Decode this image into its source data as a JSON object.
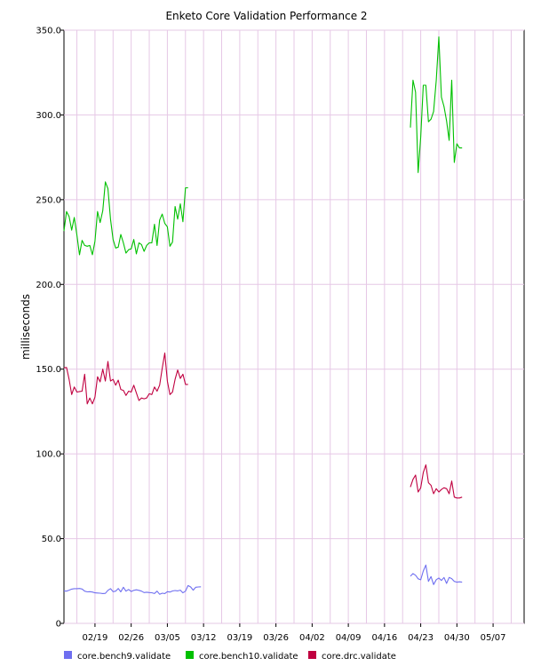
{
  "chart_data": {
    "type": "line",
    "title": "Enketo Core Validation Performance 2",
    "ylabel": "milliseconds",
    "xlabel": "",
    "ylim": [
      0,
      350
    ],
    "yticks": [
      "0",
      "50.0",
      "100.0",
      "150.0",
      "200.0",
      "250.0",
      "300.0",
      "350.0"
    ],
    "xlim": [
      "2019-02-13",
      "2019-05-13"
    ],
    "xticks": [
      {
        "date": "2019-02-19",
        "label": "02/19"
      },
      {
        "date": "2019-02-26",
        "label": "02/26"
      },
      {
        "date": "2019-03-05",
        "label": "03/05"
      },
      {
        "date": "2019-03-12",
        "label": "03/12"
      },
      {
        "date": "2019-03-19",
        "label": "03/19"
      },
      {
        "date": "2019-03-26",
        "label": "03/26"
      },
      {
        "date": "2019-04-02",
        "label": "04/02"
      },
      {
        "date": "2019-04-09",
        "label": "04/09"
      },
      {
        "date": "2019-04-16",
        "label": "04/16"
      },
      {
        "date": "2019-04-23",
        "label": "04/23"
      },
      {
        "date": "2019-04-30",
        "label": "04/30"
      },
      {
        "date": "2019-05-07",
        "label": "05/07"
      }
    ],
    "grid": true,
    "legend_position": "bottom",
    "series": [
      {
        "name": "core.bench9.validate",
        "color": "#6f6ff0",
        "segments": [
          [
            [
              "2019-02-13",
              19.2
            ],
            [
              "2019-02-13T12",
              19.0
            ],
            [
              "2019-02-14",
              19.6
            ],
            [
              "2019-02-14T12",
              20.2
            ],
            [
              "2019-02-15",
              20.5
            ],
            [
              "2019-02-15T12",
              20.5
            ],
            [
              "2019-02-16",
              20.6
            ],
            [
              "2019-02-16T12",
              20.3
            ],
            [
              "2019-02-17",
              19.0
            ],
            [
              "2019-02-17T12",
              18.6
            ],
            [
              "2019-02-18",
              18.7
            ],
            [
              "2019-02-18T12",
              18.5
            ],
            [
              "2019-02-19",
              18.0
            ],
            [
              "2019-02-19T12",
              17.9
            ],
            [
              "2019-02-20",
              17.8
            ],
            [
              "2019-02-20T12",
              17.6
            ],
            [
              "2019-02-21",
              17.7
            ],
            [
              "2019-02-21T12",
              19.5
            ],
            [
              "2019-02-22",
              20.5
            ],
            [
              "2019-02-22T12",
              18.7
            ],
            [
              "2019-02-23",
              19.0
            ],
            [
              "2019-02-23T12",
              20.6
            ],
            [
              "2019-02-24",
              18.6
            ],
            [
              "2019-02-24T12",
              21.3
            ],
            [
              "2019-02-25",
              19.0
            ],
            [
              "2019-02-25T12",
              20.0
            ],
            [
              "2019-02-26",
              18.8
            ],
            [
              "2019-02-26T12",
              19.5
            ],
            [
              "2019-02-27",
              19.8
            ],
            [
              "2019-02-27T12",
              19.5
            ],
            [
              "2019-02-28",
              19.0
            ],
            [
              "2019-02-28T12",
              18.2
            ],
            [
              "2019-03-01",
              18.4
            ],
            [
              "2019-03-01T12",
              18.2
            ],
            [
              "2019-03-02",
              18.1
            ],
            [
              "2019-03-02T12",
              17.6
            ],
            [
              "2019-03-03",
              19.0
            ],
            [
              "2019-03-03T12",
              17.2
            ],
            [
              "2019-03-04",
              17.8
            ],
            [
              "2019-03-04T12",
              17.6
            ],
            [
              "2019-03-05",
              18.7
            ],
            [
              "2019-03-05T12",
              18.5
            ],
            [
              "2019-03-06",
              19.1
            ],
            [
              "2019-03-06T12",
              19.4
            ],
            [
              "2019-03-07",
              19.2
            ],
            [
              "2019-03-07T12",
              19.6
            ],
            [
              "2019-03-08",
              18.0
            ],
            [
              "2019-03-08T12",
              19.0
            ],
            [
              "2019-03-09",
              22.3
            ],
            [
              "2019-03-09T12",
              21.5
            ],
            [
              "2019-03-10",
              19.6
            ],
            [
              "2019-03-10T12",
              21.3
            ],
            [
              "2019-03-11",
              21.5
            ],
            [
              "2019-03-11T12",
              21.6
            ]
          ],
          [
            [
              "2019-04-21",
              27.8
            ],
            [
              "2019-04-21T12",
              29.4
            ],
            [
              "2019-04-22",
              28.4
            ],
            [
              "2019-04-22T12",
              26.3
            ],
            [
              "2019-04-23",
              25.7
            ],
            [
              "2019-04-23T12",
              30.9
            ],
            [
              "2019-04-24",
              34.4
            ],
            [
              "2019-04-24T12",
              24.8
            ],
            [
              "2019-04-25",
              27.6
            ],
            [
              "2019-04-25T12",
              22.9
            ],
            [
              "2019-04-26",
              25.8
            ],
            [
              "2019-04-26T12",
              26.8
            ],
            [
              "2019-04-27",
              25.3
            ],
            [
              "2019-04-27T12",
              27.1
            ],
            [
              "2019-04-28",
              23.6
            ],
            [
              "2019-04-28T12",
              27.1
            ],
            [
              "2019-04-29",
              26.4
            ],
            [
              "2019-04-29T12",
              24.8
            ],
            [
              "2019-04-30",
              24.3
            ],
            [
              "2019-04-30T12",
              24.5
            ],
            [
              "2019-05-01",
              24.3
            ]
          ]
        ]
      },
      {
        "name": "core.bench10.validate",
        "color": "#00c000",
        "segments": [
          [
            [
              "2019-02-13",
              231.5
            ],
            [
              "2019-02-13T12",
              243.0
            ],
            [
              "2019-02-14",
              240.0
            ],
            [
              "2019-02-14T12",
              232.0
            ],
            [
              "2019-02-15",
              239.5
            ],
            [
              "2019-02-15T12",
              229.0
            ],
            [
              "2019-02-16",
              217.5
            ],
            [
              "2019-02-16T12",
              226.0
            ],
            [
              "2019-02-17",
              223.0
            ],
            [
              "2019-02-17T12",
              222.5
            ],
            [
              "2019-02-18",
              223.0
            ],
            [
              "2019-02-18T12",
              217.5
            ],
            [
              "2019-02-19",
              225.5
            ],
            [
              "2019-02-19T12",
              243.0
            ],
            [
              "2019-02-20",
              236.5
            ],
            [
              "2019-02-20T12",
              243.5
            ],
            [
              "2019-02-21",
              260.5
            ],
            [
              "2019-02-21T12",
              256.5
            ],
            [
              "2019-02-22",
              238.5
            ],
            [
              "2019-02-22T12",
              226.5
            ],
            [
              "2019-02-23",
              221.5
            ],
            [
              "2019-02-23T12",
              222.0
            ],
            [
              "2019-02-24",
              229.5
            ],
            [
              "2019-02-24T12",
              224.5
            ],
            [
              "2019-02-25",
              218.5
            ],
            [
              "2019-02-25T12",
              220.5
            ],
            [
              "2019-02-26",
              221.0
            ],
            [
              "2019-02-26T12",
              226.5
            ],
            [
              "2019-02-27",
              218.0
            ],
            [
              "2019-02-27T12",
              224.5
            ],
            [
              "2019-02-28",
              223.5
            ],
            [
              "2019-02-28T12",
              219.5
            ],
            [
              "2019-03-01",
              223.0
            ],
            [
              "2019-03-01T12",
              224.5
            ],
            [
              "2019-03-02",
              224.5
            ],
            [
              "2019-03-02T12",
              235.5
            ],
            [
              "2019-03-03",
              223.0
            ],
            [
              "2019-03-03T12",
              238.0
            ],
            [
              "2019-03-04",
              241.5
            ],
            [
              "2019-03-04T12",
              236.0
            ],
            [
              "2019-03-05",
              234.0
            ],
            [
              "2019-03-05T12",
              222.5
            ],
            [
              "2019-03-06",
              225.0
            ],
            [
              "2019-03-06T12",
              246.0
            ],
            [
              "2019-03-07",
              238.5
            ],
            [
              "2019-03-07T12",
              247.5
            ],
            [
              "2019-03-08",
              237.0
            ],
            [
              "2019-03-08T12",
              257.0
            ],
            [
              "2019-03-09",
              257.0
            ]
          ],
          [
            [
              "2019-04-21",
              292.5
            ],
            [
              "2019-04-21T12",
              320.5
            ],
            [
              "2019-04-22",
              313.5
            ],
            [
              "2019-04-22T12",
              266.0
            ],
            [
              "2019-04-23",
              287.0
            ],
            [
              "2019-04-23T12",
              317.5
            ],
            [
              "2019-04-24",
              317.5
            ],
            [
              "2019-04-24T12",
              296.0
            ],
            [
              "2019-04-25",
              297.5
            ],
            [
              "2019-04-25T12",
              302.0
            ],
            [
              "2019-04-26",
              320.5
            ],
            [
              "2019-04-26T12",
              346.0
            ],
            [
              "2019-04-27",
              310.5
            ],
            [
              "2019-04-27T12",
              305.0
            ],
            [
              "2019-04-28",
              296.5
            ],
            [
              "2019-04-28T12",
              285.0
            ],
            [
              "2019-04-29",
              320.5
            ],
            [
              "2019-04-29T12",
              272.0
            ],
            [
              "2019-04-30",
              283.0
            ],
            [
              "2019-04-30T12",
              280.5
            ],
            [
              "2019-05-01",
              280.5
            ]
          ]
        ]
      },
      {
        "name": "core.drc.validate",
        "color": "#c00040",
        "segments": [
          [
            [
              "2019-02-13",
              150.8
            ],
            [
              "2019-02-13T12",
              151.0
            ],
            [
              "2019-02-14",
              144.0
            ],
            [
              "2019-02-14T12",
              135.0
            ],
            [
              "2019-02-15",
              139.5
            ],
            [
              "2019-02-15T12",
              136.5
            ],
            [
              "2019-02-16",
              136.8
            ],
            [
              "2019-02-16T12",
              137.0
            ],
            [
              "2019-02-17",
              147.0
            ],
            [
              "2019-02-17T12",
              129.5
            ],
            [
              "2019-02-18",
              133.0
            ],
            [
              "2019-02-18T12",
              129.5
            ],
            [
              "2019-02-19",
              133.5
            ],
            [
              "2019-02-19T12",
              145.5
            ],
            [
              "2019-02-20",
              142.5
            ],
            [
              "2019-02-20T12",
              150.0
            ],
            [
              "2019-02-21",
              143.0
            ],
            [
              "2019-02-21T12",
              154.5
            ],
            [
              "2019-02-22",
              143.0
            ],
            [
              "2019-02-22T12",
              144.0
            ],
            [
              "2019-02-23",
              140.5
            ],
            [
              "2019-02-23T12",
              143.5
            ],
            [
              "2019-02-24",
              138.0
            ],
            [
              "2019-02-24T12",
              137.5
            ],
            [
              "2019-02-25",
              134.5
            ],
            [
              "2019-02-25T12",
              137.0
            ],
            [
              "2019-02-26",
              136.5
            ],
            [
              "2019-02-26T12",
              140.5
            ],
            [
              "2019-02-27",
              136.0
            ],
            [
              "2019-02-27T12",
              131.5
            ],
            [
              "2019-02-28",
              133.0
            ],
            [
              "2019-02-28T12",
              132.5
            ],
            [
              "2019-03-01",
              133.0
            ],
            [
              "2019-03-01T12",
              135.5
            ],
            [
              "2019-03-02",
              135.0
            ],
            [
              "2019-03-02T12",
              139.5
            ],
            [
              "2019-03-03",
              137.0
            ],
            [
              "2019-03-03T12",
              140.5
            ],
            [
              "2019-03-04",
              150.5
            ],
            [
              "2019-03-04T12",
              159.5
            ],
            [
              "2019-03-05",
              143.0
            ],
            [
              "2019-03-05T12",
              135.0
            ],
            [
              "2019-03-06",
              136.5
            ],
            [
              "2019-03-06T12",
              144.0
            ],
            [
              "2019-03-07",
              149.5
            ],
            [
              "2019-03-07T12",
              144.5
            ],
            [
              "2019-03-08",
              147.0
            ],
            [
              "2019-03-08T12",
              141.0
            ],
            [
              "2019-03-09",
              141.0
            ]
          ],
          [
            [
              "2019-04-21",
              80.5
            ],
            [
              "2019-04-21T12",
              85.0
            ],
            [
              "2019-04-22",
              87.5
            ],
            [
              "2019-04-22T12",
              77.5
            ],
            [
              "2019-04-23",
              80.0
            ],
            [
              "2019-04-23T12",
              89.0
            ],
            [
              "2019-04-24",
              93.5
            ],
            [
              "2019-04-24T12",
              83.0
            ],
            [
              "2019-04-25",
              81.5
            ],
            [
              "2019-04-25T12",
              76.5
            ],
            [
              "2019-04-26",
              79.5
            ],
            [
              "2019-04-26T12",
              77.5
            ],
            [
              "2019-04-27",
              79.0
            ],
            [
              "2019-04-27T12",
              80.0
            ],
            [
              "2019-04-28",
              79.5
            ],
            [
              "2019-04-28T12",
              76.5
            ],
            [
              "2019-04-29",
              84.0
            ],
            [
              "2019-04-29T12",
              74.5
            ],
            [
              "2019-04-30",
              74.0
            ],
            [
              "2019-04-30T12",
              74.0
            ],
            [
              "2019-05-01",
              74.5
            ]
          ]
        ]
      }
    ]
  }
}
